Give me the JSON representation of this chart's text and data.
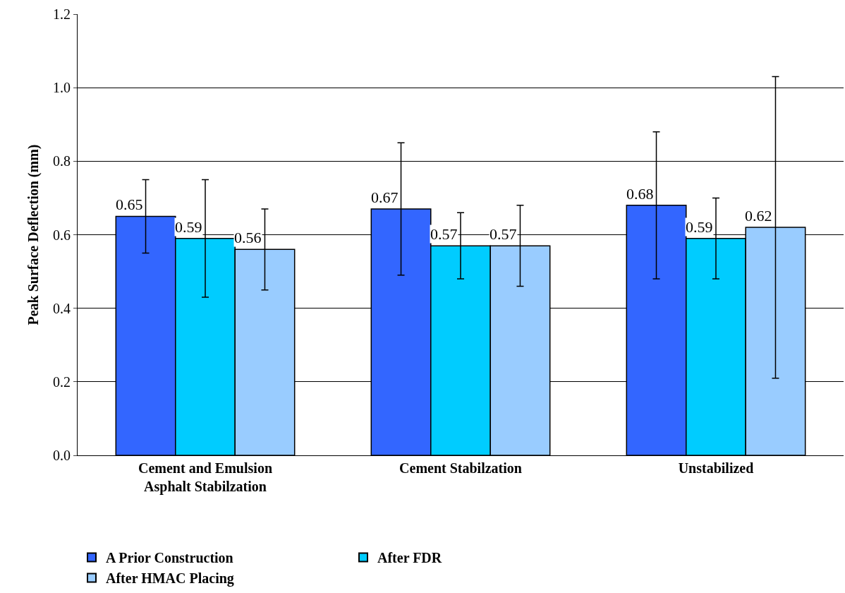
{
  "chart_data": {
    "type": "bar",
    "ylabel": "Peak Surface Deflection (mm)",
    "categories": [
      "Cement and Emulsion Asphalt Stabilzation",
      "Cement Stabilzation",
      "Unstabilized"
    ],
    "series": [
      {
        "name": "A Prior Construction",
        "color": "#3366ff",
        "values": [
          0.65,
          0.67,
          0.68
        ],
        "errors": [
          [
            0.55,
            0.75
          ],
          [
            0.49,
            0.85
          ],
          [
            0.48,
            0.88
          ]
        ]
      },
      {
        "name": "After FDR",
        "color": "#00ccff",
        "values": [
          0.59,
          0.57,
          0.59
        ],
        "errors": [
          [
            0.43,
            0.75
          ],
          [
            0.48,
            0.66
          ],
          [
            0.48,
            0.7
          ]
        ]
      },
      {
        "name": "After HMAC Placing",
        "color": "#99ccff",
        "values": [
          0.56,
          0.57,
          0.62
        ],
        "errors": [
          [
            0.45,
            0.67
          ],
          [
            0.46,
            0.68
          ],
          [
            0.21,
            1.03
          ]
        ]
      }
    ],
    "ylim": [
      0,
      1.2
    ],
    "yticks": [
      {
        "value": 0,
        "label": "0.0"
      },
      {
        "value": 0.2,
        "label": "0.2"
      },
      {
        "value": 0.4,
        "label": "0.4"
      },
      {
        "value": 0.6,
        "label": "0.6"
      },
      {
        "value": 0.8,
        "label": "0.8"
      },
      {
        "value": 1.0,
        "label": "1.0"
      },
      {
        "value": 1.2,
        "label": "1.2"
      }
    ],
    "grid": "y",
    "legend": "bottom",
    "data_labels": true
  }
}
